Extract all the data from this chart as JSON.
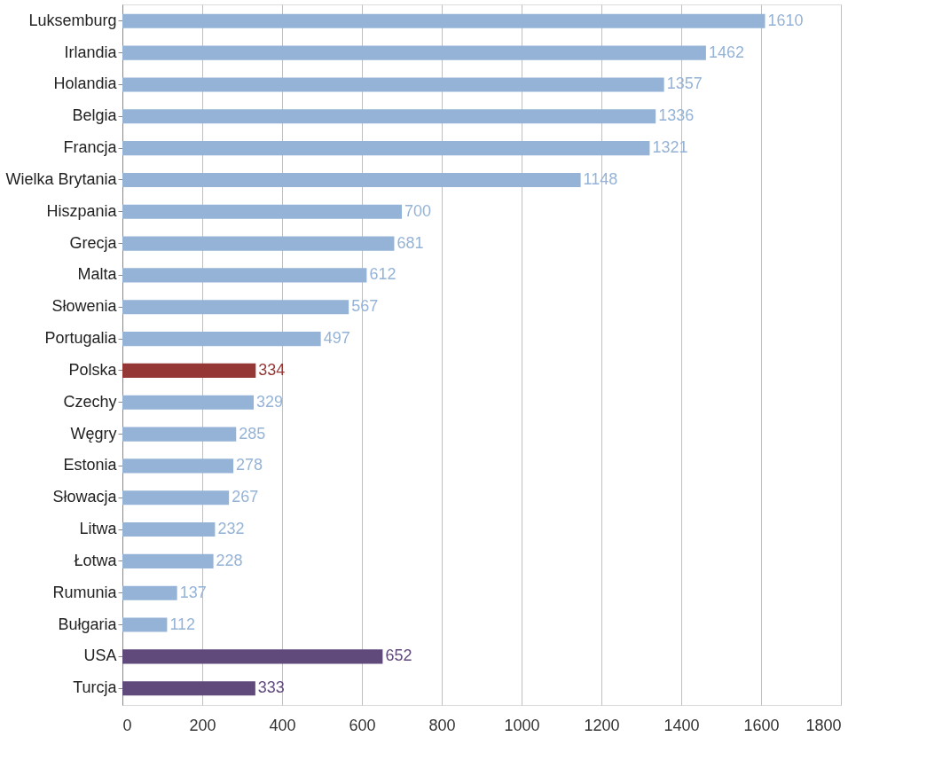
{
  "chart_data": {
    "type": "bar",
    "orientation": "horizontal",
    "categories": [
      "Luksemburg",
      "Irlandia",
      "Holandia",
      "Belgia",
      "Francja",
      "Wielka Brytania",
      "Hiszpania",
      "Grecja",
      "Malta",
      "Słowenia",
      "Portugalia",
      "Polska",
      "Czechy",
      "Węgry",
      "Estonia",
      "Słowacja",
      "Litwa",
      "Łotwa",
      "Rumunia",
      "Bułgaria",
      "USA",
      "Turcja"
    ],
    "values": [
      1610,
      1462,
      1357,
      1336,
      1321,
      1148,
      700,
      681,
      612,
      567,
      497,
      334,
      329,
      285,
      278,
      267,
      232,
      228,
      137,
      112,
      652,
      333
    ],
    "colors": [
      "#95b3d7",
      "#95b3d7",
      "#95b3d7",
      "#95b3d7",
      "#95b3d7",
      "#95b3d7",
      "#95b3d7",
      "#95b3d7",
      "#95b3d7",
      "#95b3d7",
      "#95b3d7",
      "#953735",
      "#95b3d7",
      "#95b3d7",
      "#95b3d7",
      "#95b3d7",
      "#95b3d7",
      "#95b3d7",
      "#95b3d7",
      "#95b3d7",
      "#604a7b",
      "#604a7b"
    ],
    "xlim": [
      0,
      1800
    ],
    "xticks": [
      0,
      200,
      400,
      600,
      800,
      1000,
      1200,
      1400,
      1600,
      1800
    ],
    "grid": "x",
    "data_labels": true
  }
}
